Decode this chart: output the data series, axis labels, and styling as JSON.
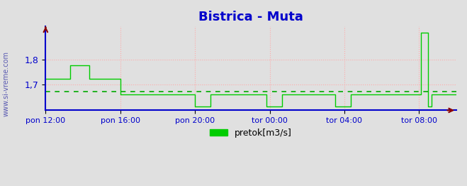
{
  "title": "Bistrica - Muta",
  "title_color": "#0000cc",
  "title_fontsize": 13,
  "bg_color": "#e0e0e0",
  "plot_bg_color": "#e0e0e0",
  "grid_color": "#ffaaaa",
  "axis_color": "#0000cc",
  "line_color": "#00cc00",
  "avg_line_color": "#00aa00",
  "avg_value": 1.672,
  "ylim": [
    1.595,
    1.935
  ],
  "yticks": [
    1.7,
    1.8
  ],
  "legend_label": "pretok[m3/s]",
  "legend_color": "#00cc00",
  "watermark": "www.si-vreme.com",
  "watermark_color": "#4444aa",
  "xtick_labels": [
    "pon 12:00",
    "pon 16:00",
    "pon 20:00",
    "tor 00:00",
    "tor 04:00",
    "tor 08:00"
  ],
  "xtick_positions": [
    0,
    48,
    96,
    144,
    192,
    240
  ],
  "total_points": 265,
  "data": [
    1.723,
    1.723,
    1.723,
    1.723,
    1.723,
    1.723,
    1.723,
    1.723,
    1.723,
    1.723,
    1.723,
    1.723,
    1.723,
    1.723,
    1.723,
    1.723,
    1.778,
    1.778,
    1.778,
    1.778,
    1.778,
    1.778,
    1.778,
    1.778,
    1.778,
    1.778,
    1.778,
    1.778,
    1.723,
    1.723,
    1.723,
    1.723,
    1.723,
    1.723,
    1.723,
    1.723,
    1.723,
    1.723,
    1.723,
    1.723,
    1.723,
    1.723,
    1.723,
    1.723,
    1.723,
    1.723,
    1.723,
    1.723,
    1.66,
    1.66,
    1.66,
    1.66,
    1.66,
    1.66,
    1.66,
    1.66,
    1.66,
    1.66,
    1.66,
    1.66,
    1.66,
    1.66,
    1.66,
    1.66,
    1.66,
    1.66,
    1.66,
    1.66,
    1.66,
    1.66,
    1.66,
    1.66,
    1.66,
    1.66,
    1.66,
    1.66,
    1.66,
    1.66,
    1.66,
    1.66,
    1.66,
    1.66,
    1.66,
    1.66,
    1.66,
    1.66,
    1.66,
    1.66,
    1.66,
    1.66,
    1.66,
    1.66,
    1.66,
    1.66,
    1.66,
    1.66,
    1.61,
    1.61,
    1.61,
    1.61,
    1.61,
    1.61,
    1.61,
    1.61,
    1.61,
    1.61,
    1.66,
    1.66,
    1.66,
    1.66,
    1.66,
    1.66,
    1.66,
    1.66,
    1.66,
    1.66,
    1.66,
    1.66,
    1.66,
    1.66,
    1.66,
    1.66,
    1.66,
    1.66,
    1.66,
    1.66,
    1.66,
    1.66,
    1.66,
    1.66,
    1.66,
    1.66,
    1.66,
    1.66,
    1.66,
    1.66,
    1.66,
    1.66,
    1.66,
    1.66,
    1.66,
    1.66,
    1.61,
    1.61,
    1.61,
    1.61,
    1.61,
    1.61,
    1.61,
    1.61,
    1.61,
    1.61,
    1.66,
    1.66,
    1.66,
    1.66,
    1.66,
    1.66,
    1.66,
    1.66,
    1.66,
    1.66,
    1.66,
    1.66,
    1.66,
    1.66,
    1.66,
    1.66,
    1.66,
    1.66,
    1.66,
    1.66,
    1.66,
    1.66,
    1.66,
    1.66,
    1.66,
    1.66,
    1.66,
    1.66,
    1.66,
    1.66,
    1.66,
    1.66,
    1.66,
    1.66,
    1.61,
    1.61,
    1.61,
    1.61,
    1.61,
    1.61,
    1.61,
    1.61,
    1.61,
    1.61,
    1.66,
    1.66,
    1.66,
    1.66,
    1.66,
    1.66,
    1.66,
    1.66,
    1.66,
    1.66,
    1.66,
    1.66,
    1.66,
    1.66,
    1.66,
    1.66,
    1.66,
    1.66,
    1.66,
    1.66,
    1.66,
    1.66,
    1.66,
    1.66,
    1.66,
    1.66,
    1.66,
    1.66,
    1.66,
    1.66,
    1.66,
    1.66,
    1.66,
    1.66,
    1.66,
    1.66,
    1.66,
    1.66,
    1.66,
    1.66,
    1.66,
    1.66,
    1.66,
    1.66,
    1.66,
    1.91,
    1.91,
    1.91,
    1.91,
    1.91,
    1.61,
    1.61,
    1.66,
    1.66,
    1.66,
    1.66,
    1.66,
    1.66,
    1.66,
    1.66,
    1.66,
    1.66,
    1.66,
    1.66,
    1.66,
    1.66,
    1.66,
    1.66,
    1.66
  ]
}
